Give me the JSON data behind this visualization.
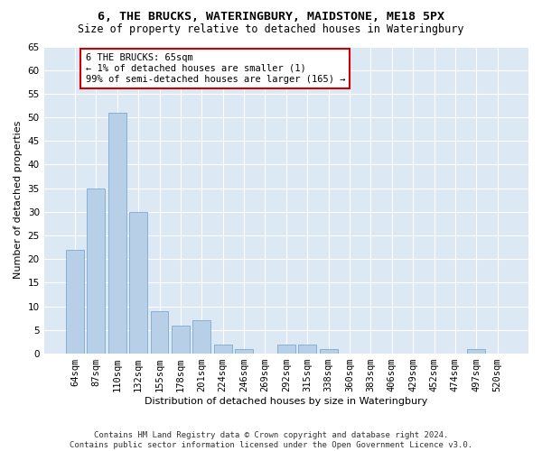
{
  "title1": "6, THE BRUCKS, WATERINGBURY, MAIDSTONE, ME18 5PX",
  "title2": "Size of property relative to detached houses in Wateringbury",
  "xlabel": "Distribution of detached houses by size in Wateringbury",
  "ylabel": "Number of detached properties",
  "bar_labels": [
    "64sqm",
    "87sqm",
    "110sqm",
    "132sqm",
    "155sqm",
    "178sqm",
    "201sqm",
    "224sqm",
    "246sqm",
    "269sqm",
    "292sqm",
    "315sqm",
    "338sqm",
    "360sqm",
    "383sqm",
    "406sqm",
    "429sqm",
    "452sqm",
    "474sqm",
    "497sqm",
    "520sqm"
  ],
  "bar_values": [
    22,
    35,
    51,
    30,
    9,
    6,
    7,
    2,
    1,
    0,
    2,
    2,
    1,
    0,
    0,
    0,
    0,
    0,
    0,
    1,
    0
  ],
  "bar_color": "#b8cfe8",
  "bar_edge_color": "#7aaad0",
  "annotation_text": "6 THE BRUCKS: 65sqm\n← 1% of detached houses are smaller (1)\n99% of semi-detached houses are larger (165) →",
  "annotation_box_color": "#ffffff",
  "annotation_border_color": "#cc0000",
  "ylim": [
    0,
    65
  ],
  "yticks": [
    0,
    5,
    10,
    15,
    20,
    25,
    30,
    35,
    40,
    45,
    50,
    55,
    60,
    65
  ],
  "fig_bg_color": "#ffffff",
  "plot_bg_color": "#dde8f5",
  "footer": "Contains HM Land Registry data © Crown copyright and database right 2024.\nContains public sector information licensed under the Open Government Licence v3.0.",
  "title1_fontsize": 9.5,
  "title2_fontsize": 8.5,
  "xlabel_fontsize": 8,
  "ylabel_fontsize": 8,
  "tick_fontsize": 7.5,
  "annotation_fontsize": 7.5,
  "footer_fontsize": 6.5
}
